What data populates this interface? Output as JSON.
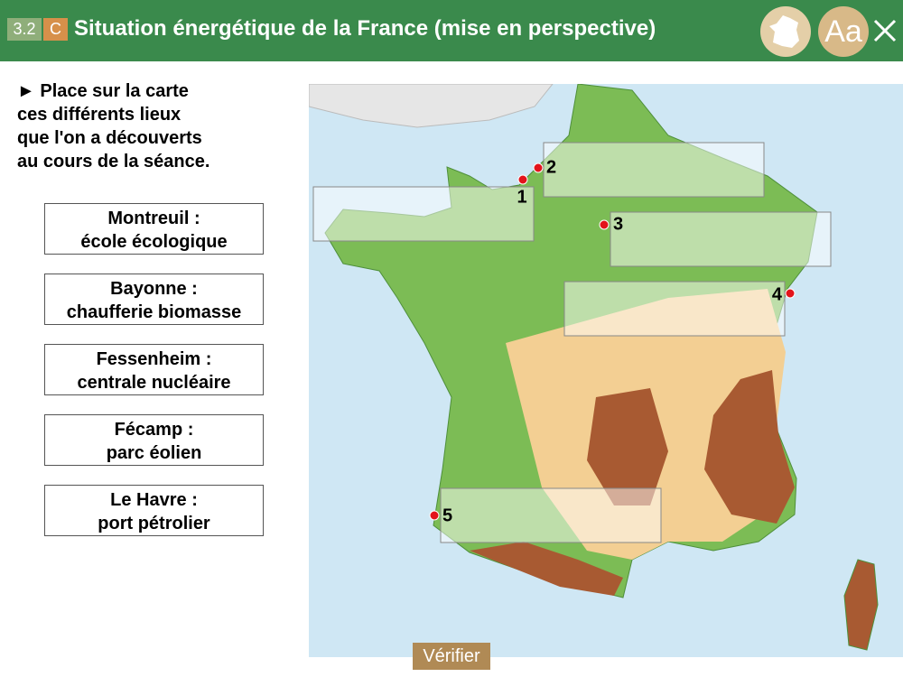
{
  "header": {
    "badge_number": "3.2",
    "badge_letter": "C",
    "title": "Situation énergétique de la France (mise en perspective)",
    "font_button": "Aa"
  },
  "instruction": [
    "► Place sur la carte",
    "ces différents lieux",
    "que l'on a découverts",
    "au cours de la séance."
  ],
  "labels": [
    {
      "place": "Montreuil :",
      "description": "école écologique"
    },
    {
      "place": "Bayonne :",
      "description": "chaufferie biomasse"
    },
    {
      "place": "Fessenheim :",
      "description": "centrale nucléaire"
    },
    {
      "place": "Fécamp :",
      "description": "parc éolien"
    },
    {
      "place": "Le Havre :",
      "description": "port pétrolier"
    }
  ],
  "map": {
    "markers": [
      1,
      2,
      3,
      4,
      5
    ]
  },
  "verify_button": "Vérifier"
}
